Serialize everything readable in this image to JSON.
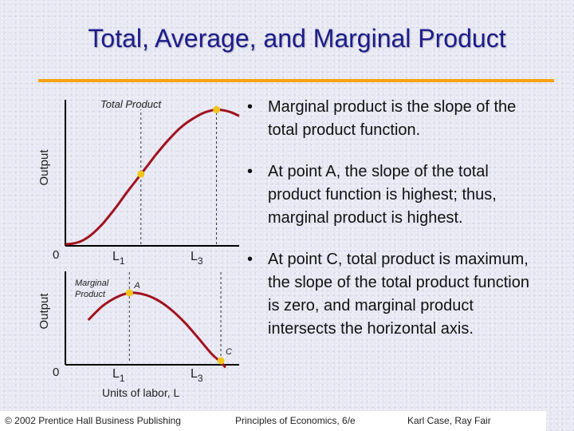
{
  "title": "Total, Average, and Marginal Product",
  "colors": {
    "title": "#1c1c8c",
    "rule": "#f5a20f",
    "curve": "#a0121e",
    "point": "#f2c618"
  },
  "bullets": [
    "Marginal product is the slope of the total product function.",
    "At point A, the slope of the total product function is highest; thus, marginal product is highest.",
    "At point C, total product is maximum, the slope of the total product function is zero, and marginal product intersects the horizontal axis."
  ],
  "chart_data": [
    {
      "type": "line",
      "title": "Total Product",
      "ylabel": "Output",
      "xlabel": "",
      "origin_label": "0",
      "x_tick_labels": [
        {
          "text": "L",
          "sub": "1"
        },
        {
          "text": "L",
          "sub": "3"
        }
      ],
      "series": [
        {
          "name": "Total Product",
          "x": [
            0,
            0.1,
            0.2,
            0.3,
            0.4,
            0.5,
            0.6,
            0.7,
            0.8,
            0.9,
            1.0,
            1.1,
            1.2,
            1.3,
            1.4,
            1.5,
            1.6,
            1.7,
            1.8,
            1.9,
            2.0,
            2.1,
            2.2,
            2.3
          ],
          "y": [
            0,
            0.01,
            0.04,
            0.1,
            0.19,
            0.3,
            0.43,
            0.57,
            0.72,
            0.86,
            1.0,
            1.14,
            1.28,
            1.41,
            1.53,
            1.64,
            1.73,
            1.8,
            1.86,
            1.9,
            1.92,
            1.91,
            1.88,
            1.83
          ]
        }
      ],
      "markers": [
        {
          "x": 1.0,
          "y": 1.0
        },
        {
          "x": 2.0,
          "y": 1.92
        }
      ],
      "guides": [
        1.0,
        2.0
      ],
      "xlim": [
        0,
        2.3
      ],
      "ylim": [
        0,
        2.05
      ],
      "grid": false
    },
    {
      "type": "line",
      "ylabel": "Output",
      "xlabel": "Units of labor, L",
      "origin_label": "0",
      "x_tick_labels": [
        {
          "text": "L",
          "sub": "1"
        },
        {
          "text": "L",
          "sub": "3"
        }
      ],
      "series": [
        {
          "name": "Marginal Product",
          "x": [
            -0.45,
            -0.3,
            -0.15,
            0,
            0.15,
            0.3,
            0.45,
            0.6,
            0.75,
            0.9,
            1.0,
            1.05
          ],
          "y": [
            0.6,
            0.8,
            0.93,
            1.0,
            0.98,
            0.9,
            0.76,
            0.57,
            0.34,
            0.1,
            -0.02,
            -0.1
          ]
        }
      ],
      "series_label": "Marginal Product",
      "markers": [
        {
          "x": 0,
          "y": 1.0,
          "label": "A"
        },
        {
          "x": 1.0,
          "y": 0,
          "label": "C"
        }
      ],
      "guides": [
        0,
        1.0
      ],
      "xlim": [
        -0.7,
        1.2
      ],
      "ylim": [
        0,
        1.2
      ],
      "grid": false
    }
  ],
  "footer": {
    "left": "© 2002 Prentice Hall Business Publishing",
    "middle": "Principles of Economics, 6/e",
    "right": "Karl Case, Ray Fair"
  }
}
